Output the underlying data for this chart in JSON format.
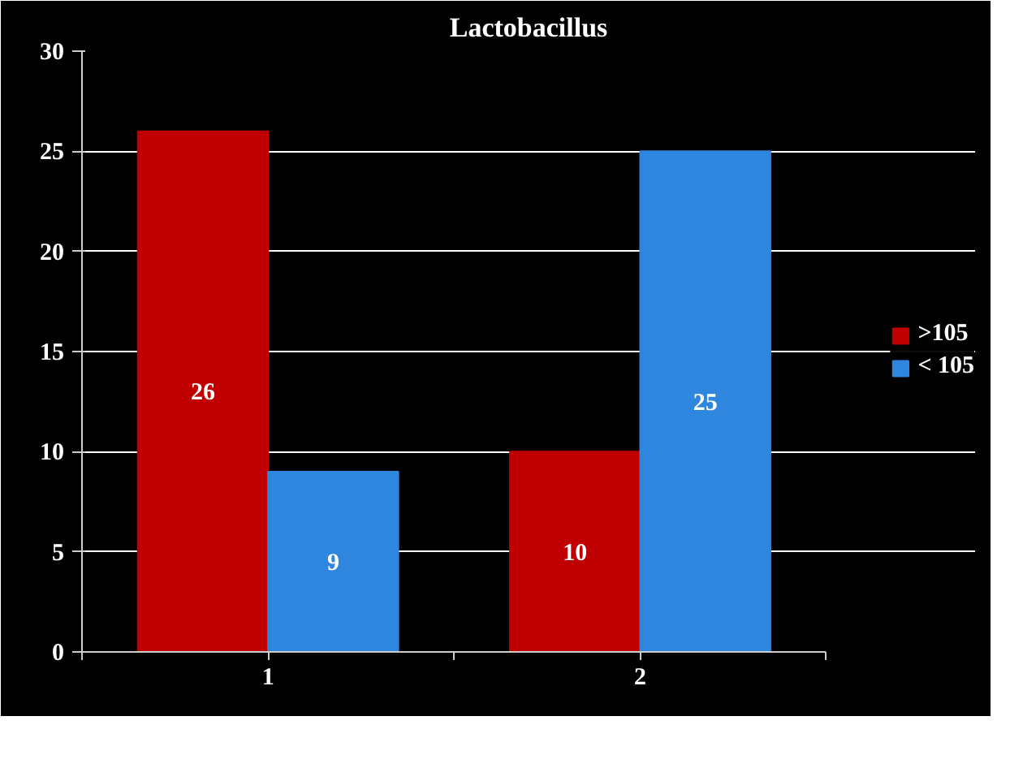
{
  "chart_data": {
    "type": "bar",
    "title": "Lactobacillus",
    "categories": [
      "1",
      "2"
    ],
    "series": [
      {
        "name": ">105",
        "color": "#c00000",
        "values": [
          26,
          10
        ]
      },
      {
        "name": "< 105",
        "color": "#2e86de",
        "values": [
          9,
          25
        ]
      }
    ],
    "ylim": [
      0,
      30
    ],
    "yticks": [
      0,
      5,
      10,
      15,
      20,
      25,
      30
    ],
    "grid": "y",
    "legend": "right",
    "data_labels": true
  }
}
